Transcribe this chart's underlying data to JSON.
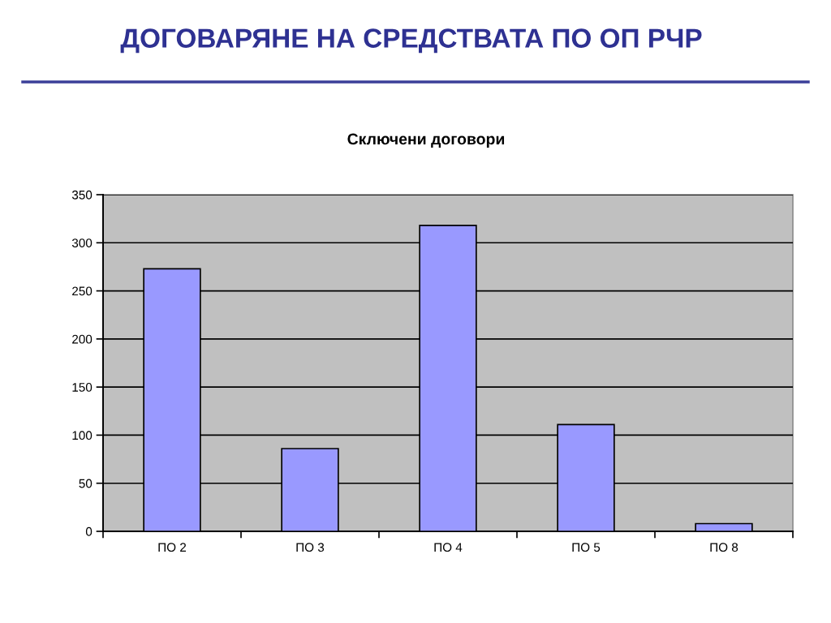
{
  "chart_data": {
    "type": "bar",
    "title": "ДОГОВАРЯНЕ НА СРЕДСТВАТА ПО ОП РЧР",
    "subtitle": "Сключени договори",
    "categories": [
      "ПО 2",
      "ПО 3",
      "ПО 4",
      "ПО 5",
      "ПО 8"
    ],
    "values": [
      273,
      86,
      318,
      111,
      8
    ],
    "color": "#9999ff",
    "ylim": [
      0,
      350
    ],
    "yticks": [
      0,
      50,
      100,
      150,
      200,
      250,
      300,
      350
    ],
    "grid": "y"
  }
}
